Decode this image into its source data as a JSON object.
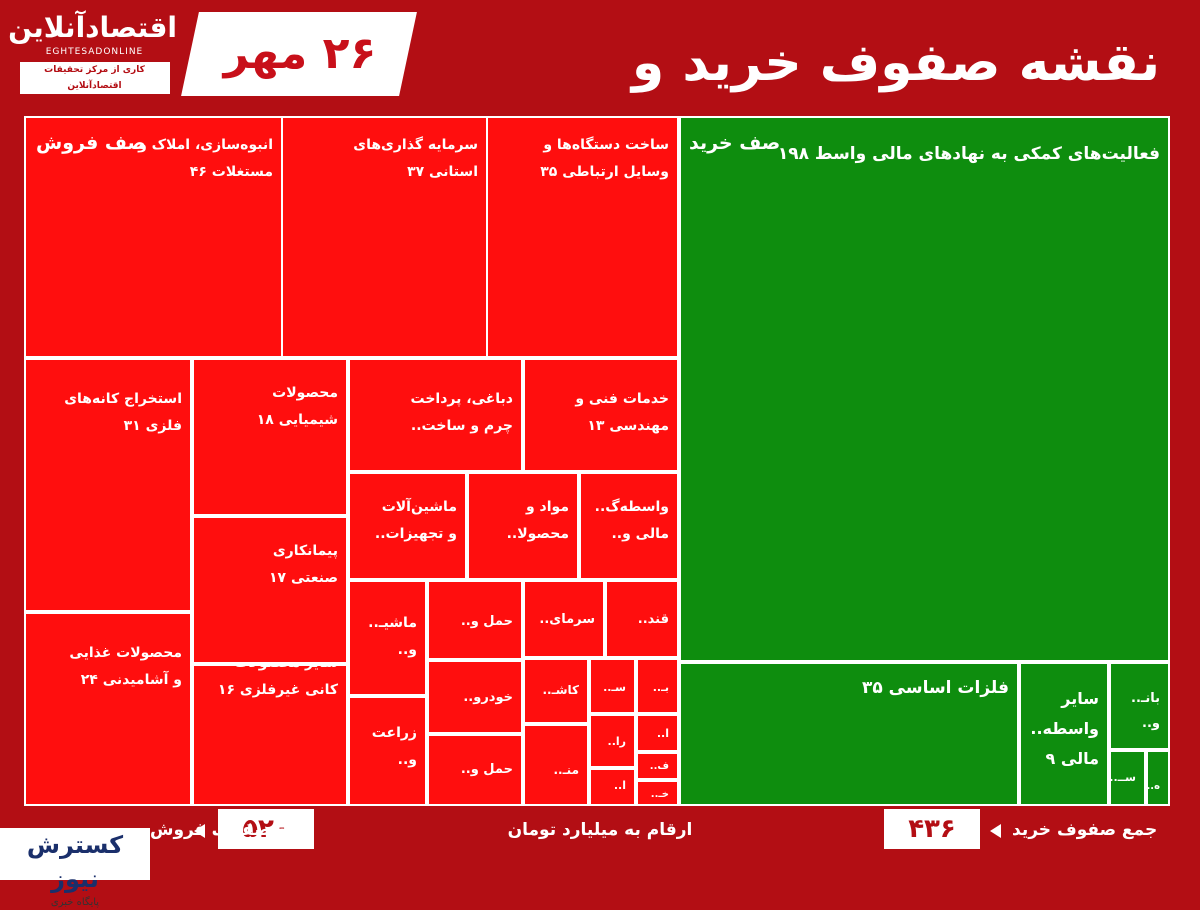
{
  "header": {
    "title": "نقشه صفوف خرید و فروش سهام",
    "date": "۲۶ مهر",
    "logo_name": "اقتصادآنلاین",
    "logo_latin": "EGHTESADONLINE",
    "logo_sub": "کاری از مرکز تحقیقات اقتصادآنلاین"
  },
  "colors": {
    "sell": "#ff0e0e",
    "buy": "#0e8d0e",
    "background": "#b30e14"
  },
  "chart_data": {
    "type": "treemap",
    "title": "نقشه صفوف خرید و فروش سهام",
    "unit_note": "ارقام به میلیارد تومان",
    "groups": [
      {
        "label": "صف فروش",
        "total": 520,
        "color": "#ff0e0e"
      },
      {
        "label": "صف خرید",
        "total": 436,
        "color": "#0e8d0e"
      }
    ],
    "tiles": [
      {
        "group": "sell",
        "label": "انبوه‌سازی، املاک و\nمستغلات ۴۶",
        "value": 46
      },
      {
        "group": "sell",
        "label": "سرمایه گذاری‌های\nاستانی ۳۷",
        "value": 37
      },
      {
        "group": "sell",
        "label": "ساخت دستگاه‌ها و\nوسایل ارتباطی ۳۵",
        "value": 35
      },
      {
        "group": "sell",
        "label": "استخراج کانه‌های\nفلزی ۳۱",
        "value": 31
      },
      {
        "group": "sell",
        "label": "محصولات غذایی\nو آشامیدنی ۲۴",
        "value": 24
      },
      {
        "group": "sell",
        "label": "محصولات\nشیمیایی ۱۸",
        "value": 18
      },
      {
        "group": "sell",
        "label": "پیمانکاری\nصنعتی ۱۷",
        "value": 17
      },
      {
        "group": "sell",
        "label": "سایر محصولات\nکانی غیرفلزی ۱۶",
        "value": 16
      },
      {
        "group": "sell",
        "label": "دباغی، پرداخت\nچرم و ساخت..",
        "value": null
      },
      {
        "group": "sell",
        "label": "خدمات فنی و\nمهندسی ۱۳",
        "value": 13
      },
      {
        "group": "sell",
        "label": "ماشین‌آلات\nو تجهیزات..",
        "value": null
      },
      {
        "group": "sell",
        "label": "مواد و\nمحصولا..",
        "value": null
      },
      {
        "group": "sell",
        "label": "واسطه‌گ..\nمالی و..",
        "value": null
      },
      {
        "group": "sell",
        "label": "ماشیـ..\nو..",
        "value": null
      },
      {
        "group": "sell",
        "label": "زراعت\nو..",
        "value": null
      },
      {
        "group": "sell",
        "label": "حمل و..",
        "value": null
      },
      {
        "group": "sell",
        "label": "خودرو..",
        "value": null
      },
      {
        "group": "sell",
        "label": "حمل و..",
        "value": null
      },
      {
        "group": "sell",
        "label": "سرمای..",
        "value": null
      },
      {
        "group": "sell",
        "label": "قند..",
        "value": null
      },
      {
        "group": "sell",
        "label": "کاشـ..",
        "value": null
      },
      {
        "group": "sell",
        "label": "منـ..",
        "value": null
      },
      {
        "group": "sell",
        "label": "سـ..",
        "value": null
      },
      {
        "group": "sell",
        "label": "را..",
        "value": null
      },
      {
        "group": "sell",
        "label": "ا..",
        "value": null
      },
      {
        "group": "sell",
        "label": "بـ..",
        "value": null
      },
      {
        "group": "sell",
        "label": "ا..",
        "value": null
      },
      {
        "group": "sell",
        "label": "ف..",
        "value": null
      },
      {
        "group": "sell",
        "label": "خـ..",
        "value": null
      },
      {
        "group": "buy",
        "label": "فعالیت‌های کمکی به نهادهای مالی واسط ۱۹۸",
        "value": 198
      },
      {
        "group": "buy",
        "label": "فلزات اساسی ۳۵",
        "value": 35
      },
      {
        "group": "buy",
        "label": "سایر\nواسطه..\nمالی ۹",
        "value": 9
      },
      {
        "group": "buy",
        "label": "بانـ..\nو..",
        "value": null
      },
      {
        "group": "buy",
        "label": "ســ..",
        "value": null
      },
      {
        "group": "buy",
        "label": "ه..",
        "value": null
      }
    ]
  },
  "footer": {
    "sell_label": "جمع صفوف فروش",
    "sell_total": "۵۲۰",
    "unit_note": "ارقام به میلیارد تومان",
    "buy_label": "جمع صفوف خرید",
    "buy_total": "۴۳۶",
    "news_name": "کسترش نیوز",
    "news_sub": "پایگاه خبری"
  }
}
